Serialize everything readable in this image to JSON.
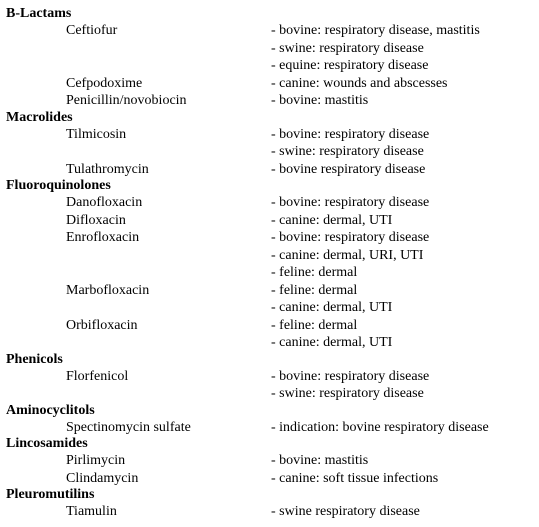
{
  "categories": [
    {
      "name": "B-Lactams",
      "drugs": [
        {
          "name": "Ceftiofur",
          "indications": [
            "- bovine: respiratory disease, mastitis",
            "- swine: respiratory disease",
            "- equine: respiratory disease"
          ]
        },
        {
          "name": "Cefpodoxime",
          "indications": [
            "- canine: wounds and abscesses"
          ]
        },
        {
          "name": "Penicillin/novobiocin",
          "indications": [
            "- bovine:  mastitis"
          ]
        }
      ]
    },
    {
      "name": "Macrolides",
      "drugs": [
        {
          "name": "Tilmicosin",
          "indications": [
            "- bovine: respiratory disease",
            "- swine:  respiratory disease"
          ]
        },
        {
          "name": "Tulathromycin",
          "indications": [
            "- bovine respiratory disease"
          ]
        }
      ]
    },
    {
      "name": "Fluoroquinolones",
      "drugs": [
        {
          "name": "Danofloxacin",
          "indications": [
            "- bovine: respiratory disease"
          ]
        },
        {
          "name": "Difloxacin",
          "indications": [
            "- canine: dermal, UTI"
          ]
        },
        {
          "name": "Enrofloxacin",
          "indications": [
            "- bovine:  respiratory disease",
            "- canine: dermal, URI, UTI",
            "- feline: dermal"
          ]
        },
        {
          "name": "Marbofloxacin",
          "indications": [
            "- feline:  dermal",
            "- canine: dermal, UTI"
          ]
        },
        {
          "name": "Orbifloxacin",
          "indications": [
            "- feline:  dermal",
            "- canine: dermal, UTI"
          ]
        }
      ]
    },
    {
      "name": "Phenicols",
      "drugs": [
        {
          "name": "Florfenicol",
          "indications": [
            "- bovine: respiratory disease",
            "- swine:  respiratory disease"
          ]
        }
      ]
    },
    {
      "name": "Aminocyclitols",
      "drugs": [
        {
          "name": "Spectinomycin sulfate",
          "indications": [
            "- indication: bovine respiratory disease"
          ]
        }
      ]
    },
    {
      "name": "Lincosamides",
      "drugs": [
        {
          "name": "Pirlimycin",
          "indications": [
            "- bovine:  mastitis"
          ]
        },
        {
          "name": "Clindamycin",
          "indications": [
            "- canine: soft tissue infections"
          ]
        }
      ]
    },
    {
      "name": "Pleuromutilins",
      "drugs": [
        {
          "name": "Tiamulin",
          "indications": [
            "- swine respiratory disease"
          ]
        }
      ]
    }
  ]
}
